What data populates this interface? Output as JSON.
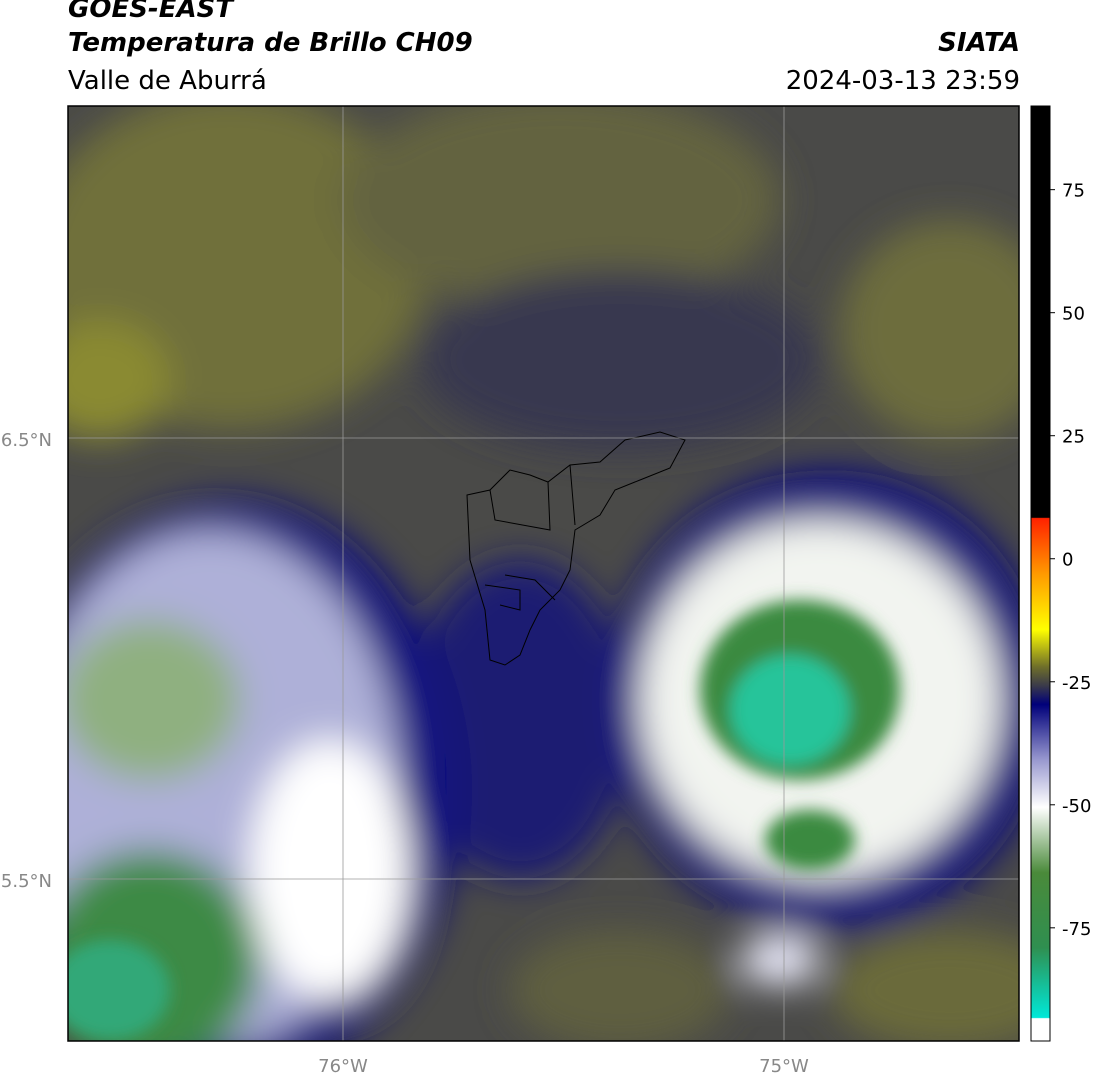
{
  "header": {
    "title": "GOES-EAST",
    "subtitle": "Temperatura de Brillo CH09",
    "region": "Valle de Aburrá",
    "agency": "SIATA",
    "datetime": "2024-03-13 23:59"
  },
  "map": {
    "lat_labels": [
      "6.5°N",
      "5.5°N"
    ],
    "lon_labels": [
      "76°W",
      "75°W"
    ]
  },
  "colorbar": {
    "lim": [
      -98,
      92
    ],
    "ticks": [
      75,
      50,
      25,
      0,
      -25,
      -50,
      -75
    ]
  }
}
